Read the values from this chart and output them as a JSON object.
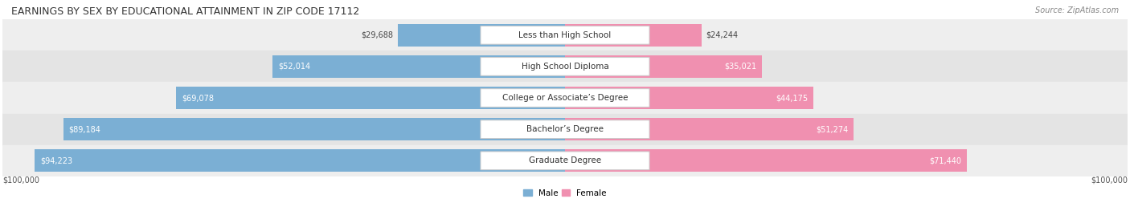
{
  "title": "EARNINGS BY SEX BY EDUCATIONAL ATTAINMENT IN ZIP CODE 17112",
  "source": "Source: ZipAtlas.com",
  "categories": [
    "Less than High School",
    "High School Diploma",
    "College or Associate’s Degree",
    "Bachelor’s Degree",
    "Graduate Degree"
  ],
  "male_values": [
    29688,
    52014,
    69078,
    89184,
    94223
  ],
  "female_values": [
    24244,
    35021,
    44175,
    51274,
    71440
  ],
  "male_color": "#7bafd4",
  "female_color": "#f090b0",
  "row_bg_colors": [
    "#eeeeee",
    "#e4e4e4"
  ],
  "max_value": 100000,
  "x_label_left": "$100,000",
  "x_label_right": "$100,000",
  "legend_male": "Male",
  "legend_female": "Female",
  "title_fontsize": 9.0,
  "label_fontsize": 7.5,
  "value_fontsize": 7.0,
  "source_fontsize": 7.0
}
